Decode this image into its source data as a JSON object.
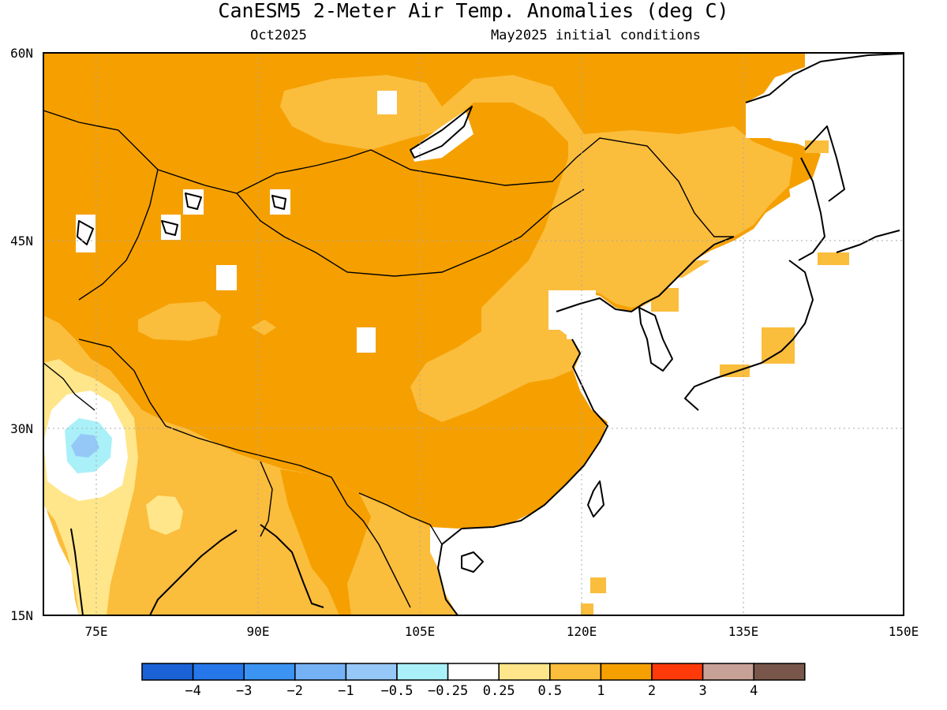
{
  "map": {
    "title": "CanESM5 2-Meter Air Temp. Anomalies (deg C)",
    "valid_month": "Oct2025",
    "initial_conditions": "May2025 initial conditions",
    "lat_labels": [
      "60N",
      "45N",
      "30N",
      "15N"
    ],
    "lon_labels": [
      "75E",
      "90E",
      "105E",
      "120E",
      "135E",
      "150E"
    ],
    "extent": {
      "lon_min": 70,
      "lon_max": 150,
      "lat_min": 15,
      "lat_max": 60
    },
    "regions": [
      {
        "name": "Mongolia / northern China",
        "value_range": "1 to 2",
        "color": "#f5a000"
      },
      {
        "name": "Tibet / western and southern China",
        "value_range": "1 to 2",
        "color": "#f5a000"
      },
      {
        "name": "northeast China",
        "value_range": "0.5 to 1",
        "color": "#fbbd3c"
      },
      {
        "name": "India / Indochina",
        "value_range": "0.5 to 1",
        "color": "#fbbd3c"
      },
      {
        "name": "northwest India",
        "value_range": "-1 to 0.25",
        "color": "#aaf0f8"
      }
    ]
  },
  "legend": {
    "labels": [
      "-4",
      "-3",
      "-2",
      "-1",
      "-0.5",
      "-0.25",
      "0.25",
      "0.5",
      "1",
      "2",
      "3",
      "4"
    ],
    "colors": [
      "#1a62d6",
      "#2677ea",
      "#3c94f2",
      "#75b2f5",
      "#96c8f7",
      "#aaf0f8",
      "#ffffff",
      "#ffe68a",
      "#fbbd3c",
      "#f5a000",
      "#ff3a0a",
      "#c8a196",
      "#78564a"
    ]
  }
}
